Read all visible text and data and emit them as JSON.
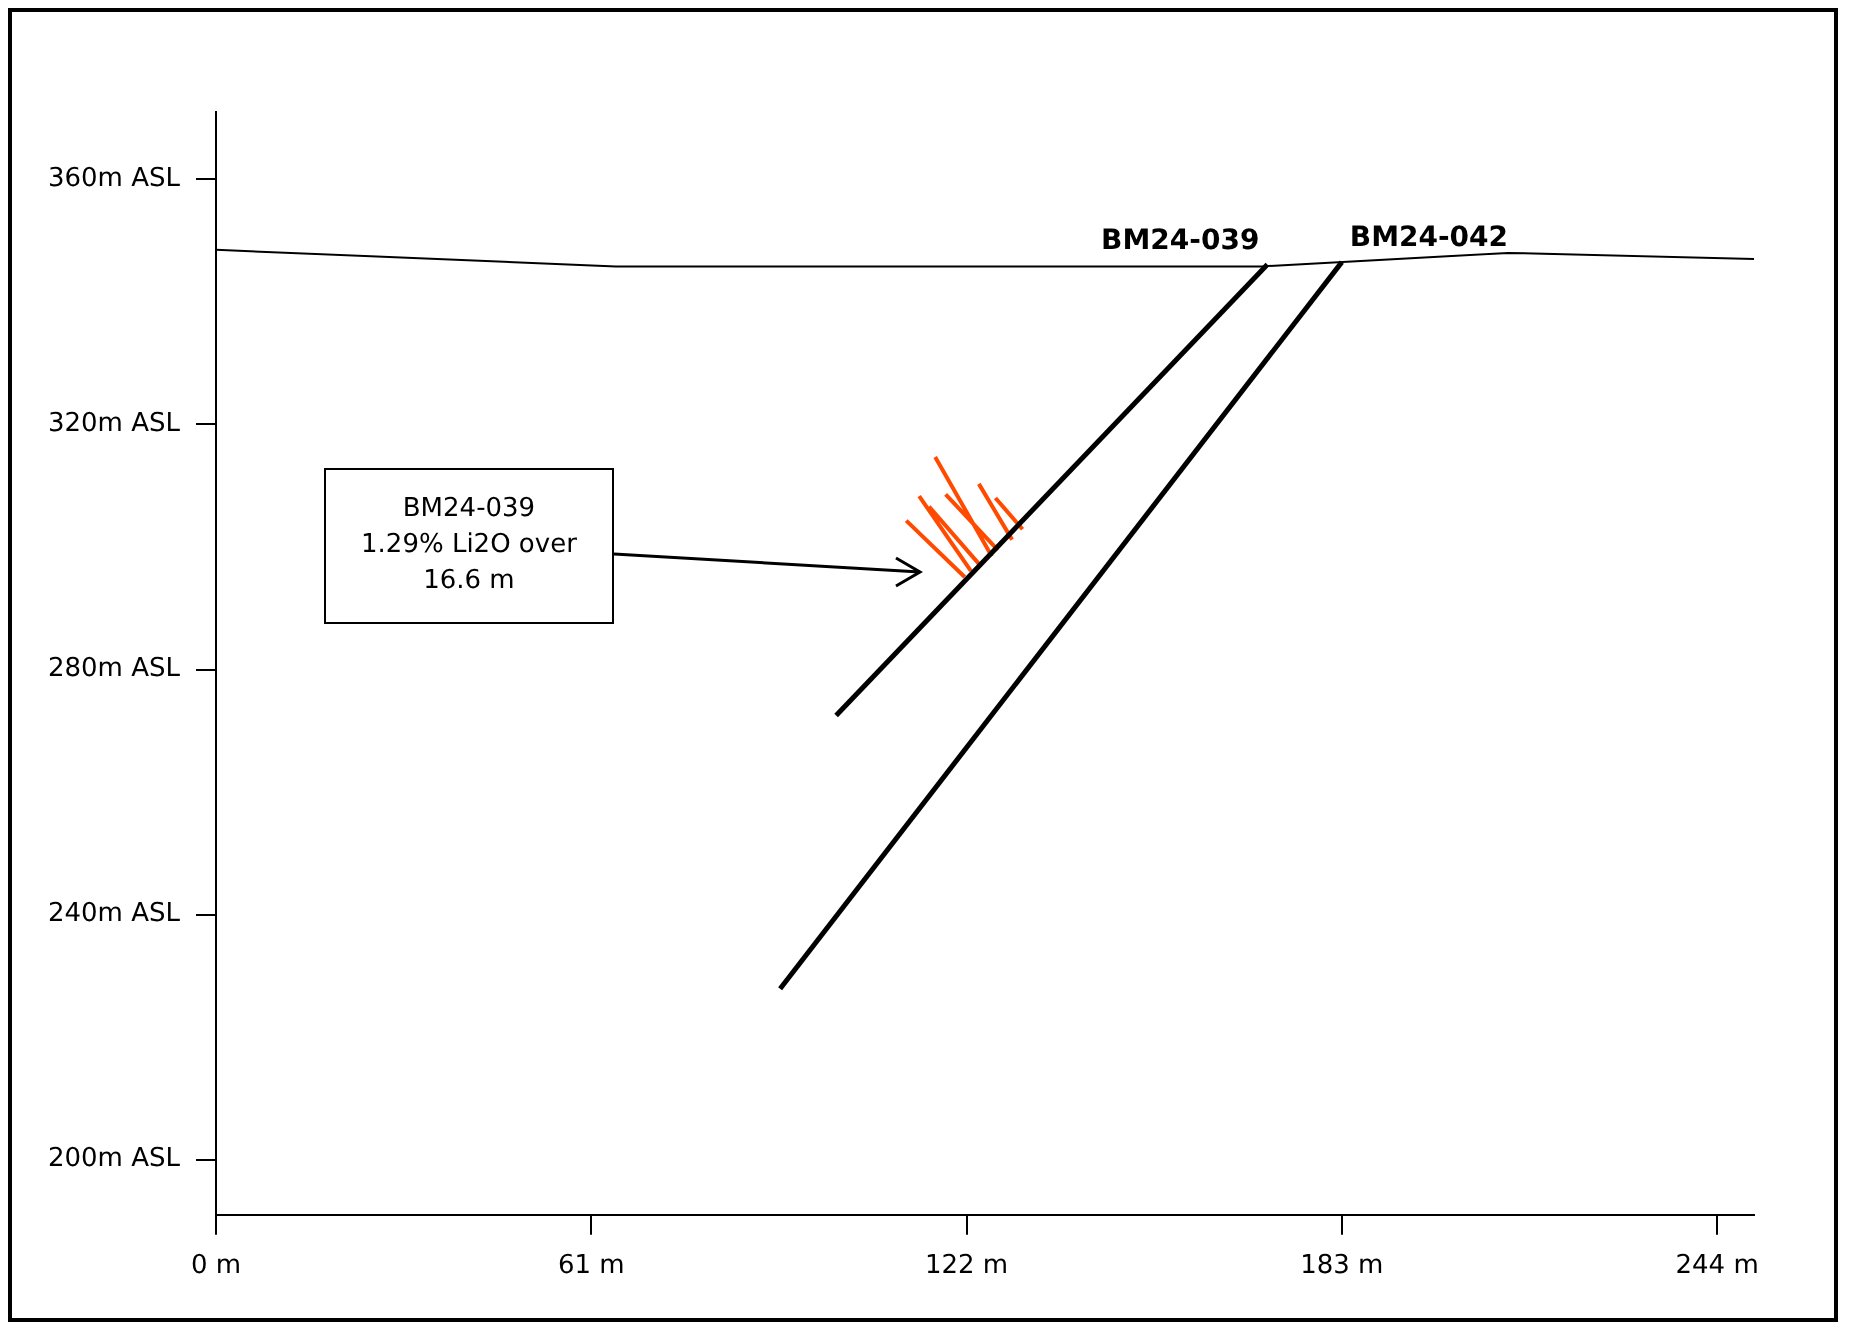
{
  "chart_data": {
    "type": "line",
    "marker": "none",
    "line_style": "solid",
    "legend": false,
    "grid": false,
    "xlim": [
      0,
      250
    ],
    "xticks": [
      {
        "value": 0,
        "label": "0 m"
      },
      {
        "value": 61,
        "label": "61 m"
      },
      {
        "value": 122,
        "label": "122 m"
      },
      {
        "value": 183,
        "label": "183 m"
      },
      {
        "value": 244,
        "label": "244 m"
      }
    ],
    "ylim": [
      191,
      371
    ],
    "yticks": [
      {
        "value": 200,
        "label": "200m ASL"
      },
      {
        "value": 240,
        "label": "240m ASL"
      },
      {
        "value": 280,
        "label": "280m ASL"
      },
      {
        "value": 320,
        "label": "320m ASL"
      },
      {
        "value": 360,
        "label": "360m ASL"
      }
    ],
    "series": [
      {
        "color": "#000000",
        "x": [
          0,
          65,
          170,
          210,
          250
        ],
        "values": [
          348.5,
          345.8,
          345.8,
          348,
          347
        ]
      },
      {
        "name": "BM24-039",
        "color": "#000000",
        "x": [
          170.9,
          100.8
        ],
        "values": [
          346.1,
          272.5
        ]
      },
      {
        "name": "BM24-042",
        "color": "#000000",
        "x": [
          183,
          91.7
        ],
        "values": [
          346.5,
          227.9
        ]
      },
      {
        "color": "#ff4a00",
        "x": [
          121.7,
          112.2,
          null,
          122.7,
          114.3,
          null,
          124.4,
          115.9,
          null,
          126.1,
          116.9,
          null,
          127.1,
          118.6,
          null,
          129.4,
          124.0,
          null,
          131.1,
          126.7
        ],
        "values": [
          295.1,
          304.3,
          null,
          296.1,
          308.3,
          null,
          296.8,
          306.6,
          null,
          298.5,
          314.7,
          null,
          299.5,
          308.6,
          null,
          301.2,
          310.3,
          null,
          302.9,
          308.0
        ]
      }
    ],
    "annotations": [
      "BM24-039\n1.29% Li2O over\n16.6 m"
    ]
  }
}
